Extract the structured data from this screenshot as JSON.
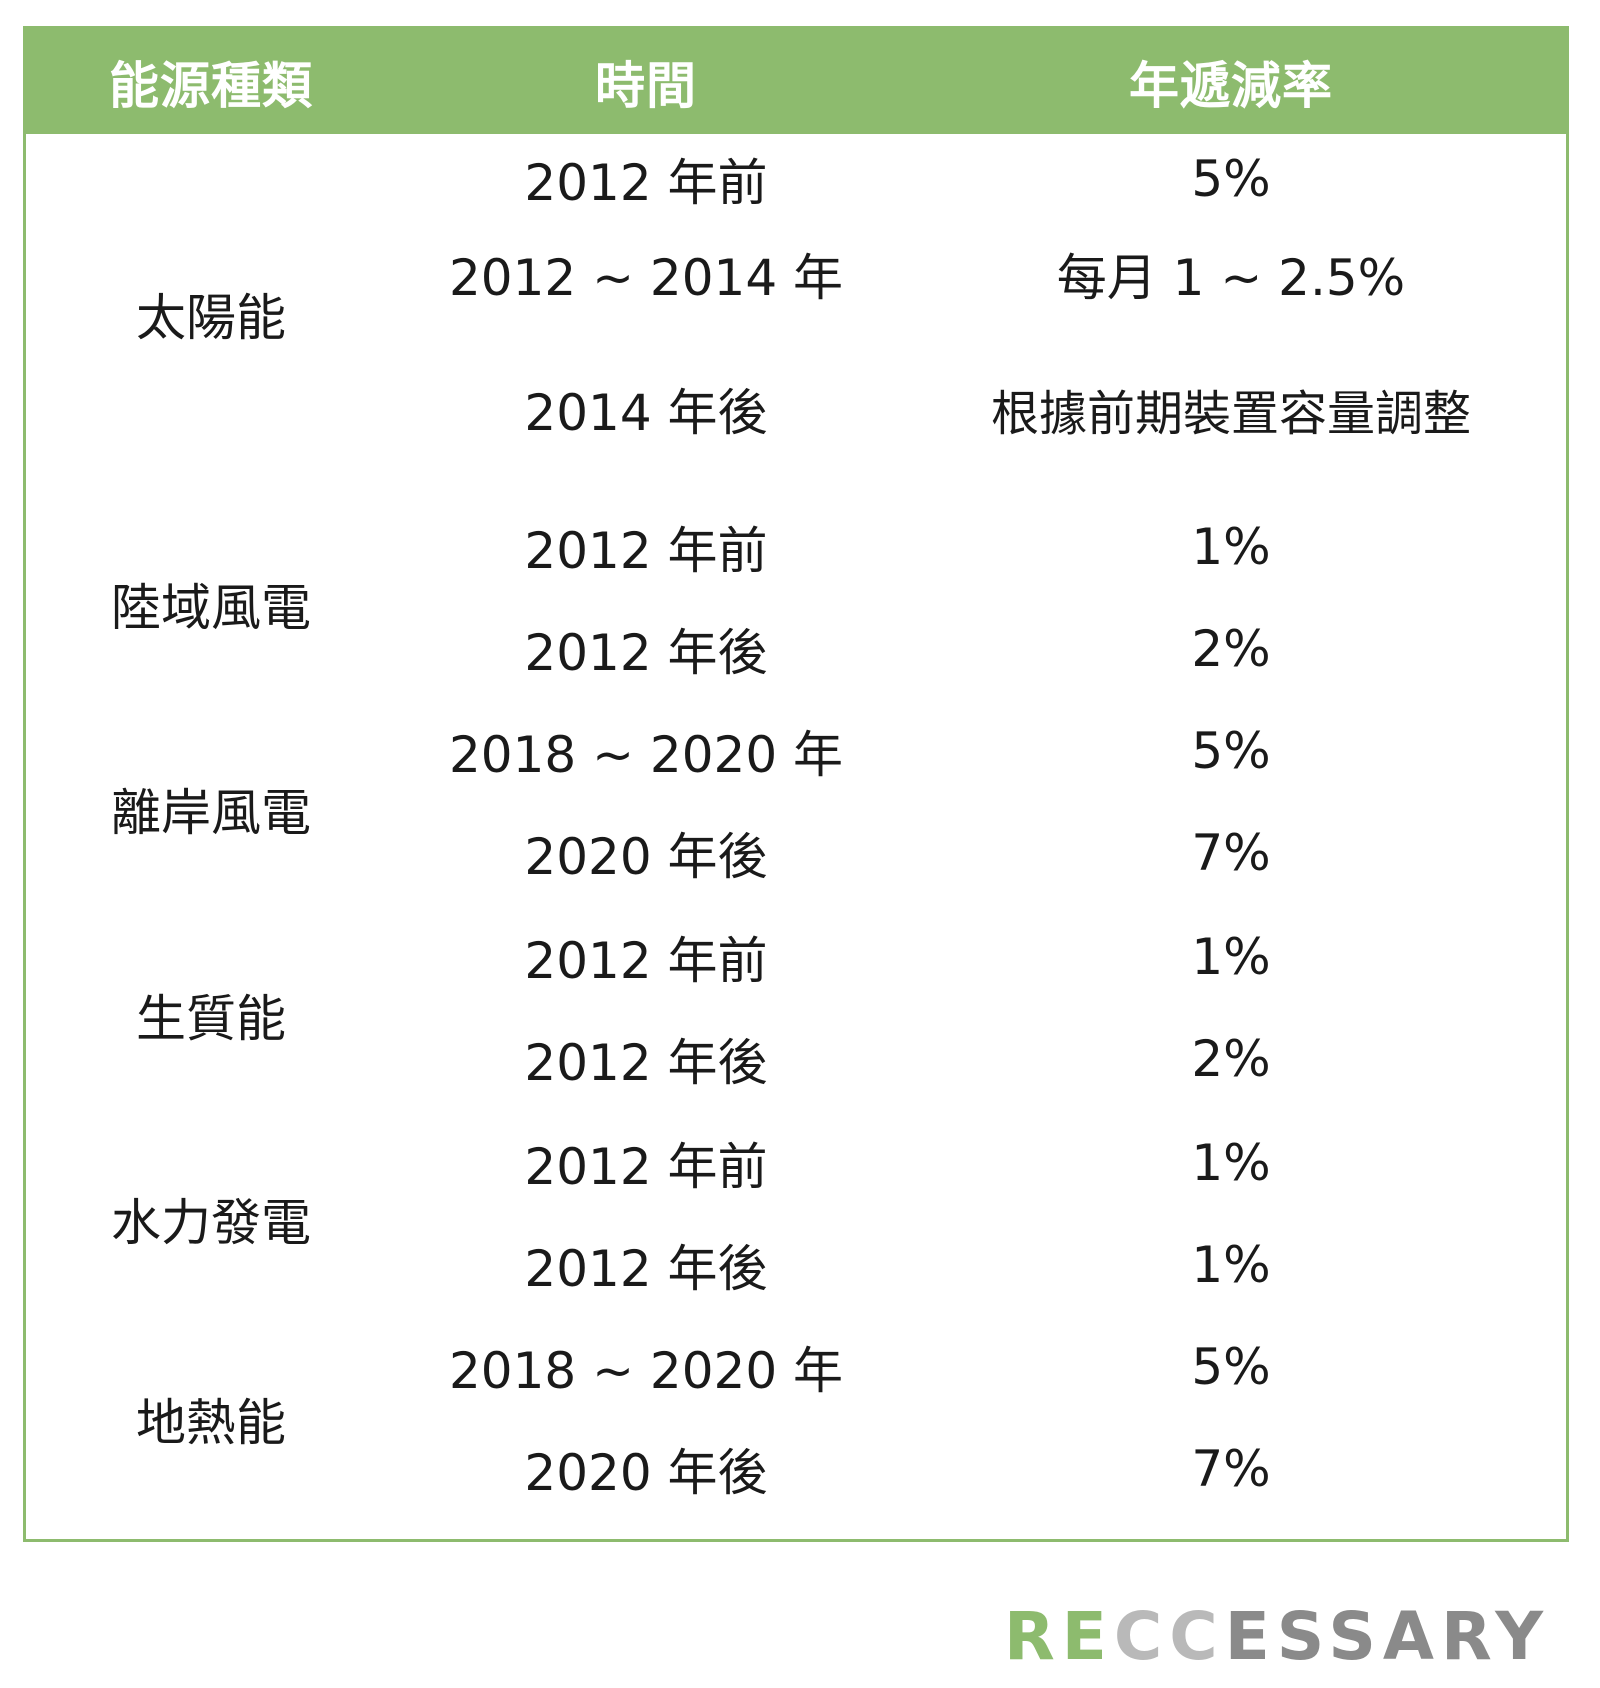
{
  "header": {
    "type": "能源種類",
    "time": "時間",
    "rate": "年遞減率"
  },
  "groups": [
    {
      "type": "太陽能",
      "rows": [
        {
          "time": "2012 年前",
          "rate": "5%"
        },
        {
          "time": "2012 ~ 2014 年",
          "rate": "每月 1 ~ 2.5%"
        },
        {
          "time": "2014 年後",
          "rate": "根據前期裝置容量調整"
        }
      ]
    },
    {
      "type": "陸域風電",
      "rows": [
        {
          "time": "2012 年前",
          "rate": "1%"
        },
        {
          "time": "2012 年後",
          "rate": "2%"
        }
      ]
    },
    {
      "type": "離岸風電",
      "rows": [
        {
          "time": "2018 ~ 2020 年",
          "rate": "5%"
        },
        {
          "time": "2020 年後",
          "rate": "7%"
        }
      ]
    },
    {
      "type": "生質能",
      "rows": [
        {
          "time": "2012 年前",
          "rate": "1%"
        },
        {
          "time": "2012 年後",
          "rate": "2%"
        }
      ]
    },
    {
      "type": "水力發電",
      "rows": [
        {
          "time": "2012 年前",
          "rate": "1%"
        },
        {
          "time": "2012 年後",
          "rate": "1%"
        }
      ]
    },
    {
      "type": "地熱能",
      "rows": [
        {
          "time": "2018 ~ 2020 年",
          "rate": "5%"
        },
        {
          "time": "2020 年後",
          "rate": "7%"
        }
      ]
    }
  ],
  "logo": {
    "part1": "RE",
    "part2": "CC",
    "part3": "ESSARY"
  },
  "colors": {
    "header_bg": "#8dbb6e",
    "border": "#8dbb6e",
    "text": "#1a1a1a",
    "logo_green": "#8dbb6e",
    "logo_gray": "#8a8a8a"
  }
}
